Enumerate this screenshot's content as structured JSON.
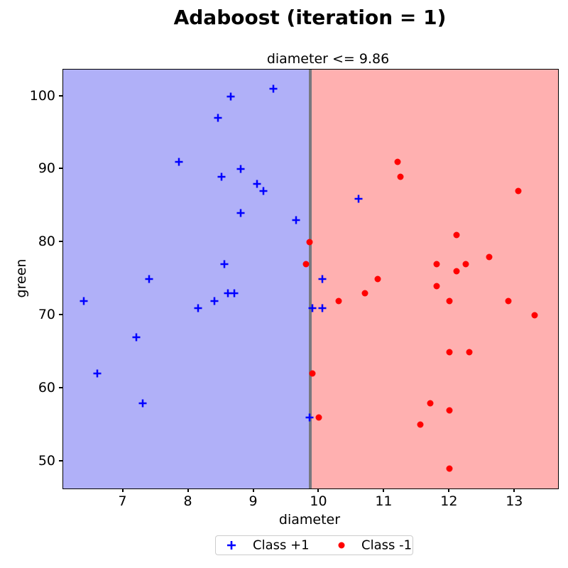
{
  "title": "Adaboost (iteration = 1)",
  "chart_data": {
    "type": "scatter",
    "title": "Adaboost (iteration = 1)",
    "xlabel": "diameter",
    "ylabel": "green",
    "xlim": [
      6.08,
      13.66
    ],
    "ylim": [
      46.3,
      103.65
    ],
    "x_ticks": [
      7,
      8,
      9,
      10,
      11,
      12,
      13
    ],
    "y_ticks": [
      50,
      60,
      70,
      80,
      90,
      100
    ],
    "grid": false,
    "decision_boundary": {
      "feature": "diameter",
      "threshold": 9.86,
      "label": "diameter <= 9.86",
      "line_color": "#77787f"
    },
    "regions": [
      {
        "predicted_class": "+1",
        "side": "left",
        "color": "#b0b0f8"
      },
      {
        "predicted_class": "-1",
        "side": "right",
        "color": "#ffb0b0"
      }
    ],
    "legend": {
      "position": "bottom-center",
      "entries": [
        "Class +1",
        "Class -1"
      ]
    },
    "series": [
      {
        "name": "Class +1",
        "marker": "plus",
        "color": "#0000ff",
        "points": [
          [
            6.4,
            72
          ],
          [
            6.6,
            62
          ],
          [
            7.2,
            67
          ],
          [
            7.3,
            58
          ],
          [
            7.4,
            75
          ],
          [
            7.85,
            91
          ],
          [
            8.15,
            71
          ],
          [
            8.4,
            72
          ],
          [
            8.45,
            97
          ],
          [
            8.5,
            89
          ],
          [
            8.55,
            77
          ],
          [
            8.6,
            73
          ],
          [
            8.65,
            100
          ],
          [
            8.7,
            73
          ],
          [
            8.8,
            90
          ],
          [
            8.8,
            84
          ],
          [
            9.05,
            88
          ],
          [
            9.15,
            87
          ],
          [
            9.3,
            101
          ],
          [
            9.65,
            83
          ],
          [
            9.85,
            56
          ],
          [
            9.9,
            71
          ],
          [
            10.05,
            75
          ],
          [
            10.05,
            71
          ],
          [
            10.6,
            86
          ]
        ]
      },
      {
        "name": "Class -1",
        "marker": "circle",
        "color": "#ff0000",
        "points": [
          [
            9.8,
            77
          ],
          [
            9.85,
            80
          ],
          [
            9.9,
            62
          ],
          [
            10.0,
            56
          ],
          [
            10.3,
            72
          ],
          [
            10.7,
            73
          ],
          [
            10.9,
            75
          ],
          [
            11.2,
            91
          ],
          [
            11.25,
            89
          ],
          [
            11.55,
            55
          ],
          [
            11.7,
            58
          ],
          [
            11.8,
            77
          ],
          [
            11.8,
            74
          ],
          [
            12.0,
            72
          ],
          [
            12.0,
            65
          ],
          [
            12.0,
            57
          ],
          [
            12.0,
            49
          ],
          [
            12.1,
            81
          ],
          [
            12.1,
            76
          ],
          [
            12.25,
            77
          ],
          [
            12.3,
            65
          ],
          [
            12.6,
            78
          ],
          [
            12.9,
            72
          ],
          [
            13.05,
            87
          ],
          [
            13.3,
            70
          ]
        ]
      }
    ]
  }
}
